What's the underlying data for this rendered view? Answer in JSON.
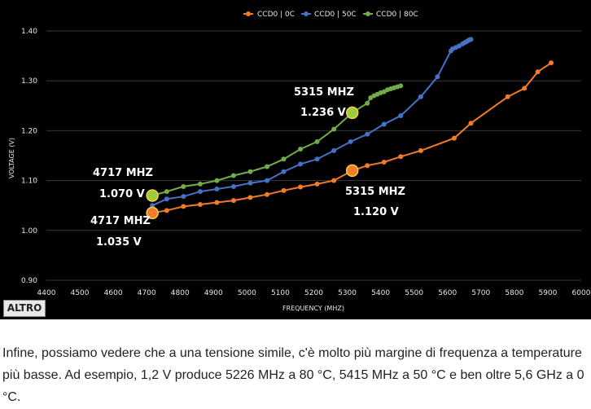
{
  "chart_data": {
    "type": "line",
    "title": "",
    "xlabel": "FREQUENCY (MHZ)",
    "ylabel": "VOLTAGE (V)",
    "xlim": [
      4400,
      6000
    ],
    "ylim": [
      0.9,
      1.4
    ],
    "xticks": [
      "4400",
      "4500",
      "4600",
      "4700",
      "4800",
      "4900",
      "5000",
      "5100",
      "5200",
      "5300",
      "5400",
      "5500",
      "5600",
      "5700",
      "5800",
      "5900",
      "6000"
    ],
    "yticks": [
      "0.90",
      "1.00",
      "1.10",
      "1.20",
      "1.30",
      "1.40"
    ],
    "grid": "horizontal",
    "legend_position": "top-center",
    "series": [
      {
        "name": "CCD0 | 0C",
        "color": "#f07b2a",
        "x": [
          4717,
          4760,
          4810,
          4860,
          4910,
          4960,
          5010,
          5060,
          5110,
          5160,
          5210,
          5260,
          5315,
          5360,
          5410,
          5460,
          5520,
          5620,
          5670,
          5780,
          5830,
          5870,
          5910
        ],
        "y": [
          1.035,
          1.04,
          1.048,
          1.052,
          1.056,
          1.06,
          1.066,
          1.072,
          1.08,
          1.087,
          1.093,
          1.1,
          1.12,
          1.13,
          1.137,
          1.148,
          1.16,
          1.185,
          1.215,
          1.268,
          1.285,
          1.318,
          1.336
        ]
      },
      {
        "name": "CCD0 | 50C",
        "color": "#4472c4",
        "x": [
          4717,
          4760,
          4810,
          4860,
          4910,
          4960,
          5010,
          5060,
          5110,
          5160,
          5210,
          5260,
          5310,
          5360,
          5410,
          5460,
          5520,
          5570,
          5610,
          5615,
          5625,
          5635,
          5645,
          5650,
          5655,
          5660,
          5665,
          5670
        ],
        "y": [
          1.05,
          1.063,
          1.068,
          1.078,
          1.083,
          1.088,
          1.095,
          1.1,
          1.118,
          1.133,
          1.143,
          1.16,
          1.178,
          1.193,
          1.213,
          1.23,
          1.268,
          1.308,
          1.36,
          1.364,
          1.367,
          1.37,
          1.374,
          1.376,
          1.378,
          1.38,
          1.382,
          1.383
        ]
      },
      {
        "name": "CCD0 | 80C",
        "color": "#70ad47",
        "x": [
          4717,
          4760,
          4810,
          4860,
          4910,
          4960,
          5010,
          5060,
          5110,
          5160,
          5210,
          5260,
          5315,
          5360,
          5370,
          5380,
          5390,
          5400,
          5410,
          5420,
          5430,
          5440,
          5450,
          5460
        ],
        "y": [
          1.07,
          1.078,
          1.088,
          1.093,
          1.1,
          1.11,
          1.118,
          1.128,
          1.143,
          1.163,
          1.178,
          1.203,
          1.236,
          1.255,
          1.266,
          1.27,
          1.273,
          1.276,
          1.278,
          1.282,
          1.284,
          1.286,
          1.288,
          1.29
        ]
      }
    ],
    "highlights": [
      {
        "x": 4717,
        "y": 1.035,
        "color": "#f07b2a",
        "freq_label": "4717 MHZ",
        "volt_label": "1.035 V"
      },
      {
        "x": 4717,
        "y": 1.07,
        "color": "#9ccc3c",
        "freq_label": "4717 MHZ",
        "volt_label": "1.070 V"
      },
      {
        "x": 5315,
        "y": 1.12,
        "color": "#f07b2a",
        "freq_label": "5315 MHZ",
        "volt_label": "1.120 V"
      },
      {
        "x": 5315,
        "y": 1.236,
        "color": "#9ccc3c",
        "freq_label": "5315 MHZ",
        "volt_label": "1.236 V"
      }
    ]
  },
  "badge_label": "ALTRO",
  "caption": "Infine, possiamo vedere che a una tensione simile, c'è molto più margine di frequenza a temperature più basse. Ad esempio, 1,2 V produce 5226 MHz a 80 °C, 5415 MHz a 50 °C e ben oltre 5,6 GHz a 0 °C."
}
